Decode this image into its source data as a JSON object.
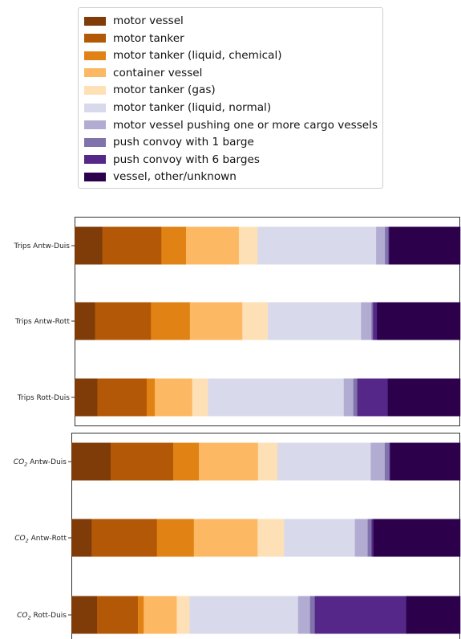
{
  "legend": {
    "placement": "top",
    "items": [
      {
        "label": "motor vessel",
        "color": "#7f3b08"
      },
      {
        "label": "motor tanker",
        "color": "#b35806"
      },
      {
        "label": "motor tanker (liquid, chemical)",
        "color": "#e08214"
      },
      {
        "label": "container vessel",
        "color": "#fdb863"
      },
      {
        "label": "motor tanker (gas)",
        "color": "#fee0b6"
      },
      {
        "label": "motor tanker (liquid, normal)",
        "color": "#d8daeb"
      },
      {
        "label": "motor vessel pushing one or more cargo vessels",
        "color": "#b2abd2"
      },
      {
        "label": "push convoy with 1 barge",
        "color": "#8073ac"
      },
      {
        "label": "push convoy with 6 barges",
        "color": "#542788"
      },
      {
        "label": "vessel, other/unknown",
        "color": "#2d004b"
      }
    ]
  },
  "chart_data": [
    {
      "type": "bar",
      "orientation": "horizontal",
      "stacked": true,
      "title": "",
      "xlabel": "",
      "ylabel": "",
      "xlim": [
        0,
        100
      ],
      "categories": [
        "Trips Antw-Duis",
        "Trips Antw-Rott",
        "Trips Rott-Duis"
      ],
      "series": [
        {
          "name": "motor vessel",
          "values": [
            7.2,
            5.3,
            5.9
          ]
        },
        {
          "name": "motor tanker",
          "values": [
            15.3,
            14.5,
            12.8
          ]
        },
        {
          "name": "motor tanker (liquid, chemical)",
          "values": [
            6.4,
            10.1,
            2.1
          ]
        },
        {
          "name": "container vessel",
          "values": [
            13.7,
            13.6,
            9.7
          ]
        },
        {
          "name": "motor tanker (gas)",
          "values": [
            4.9,
            6.6,
            4.1
          ]
        },
        {
          "name": "motor tanker (liquid, normal)",
          "values": [
            30.7,
            24.2,
            35.2
          ]
        },
        {
          "name": "motor vessel pushing one or more cargo vessels",
          "values": [
            2.3,
            2.7,
            2.5
          ]
        },
        {
          "name": "push convoy with 1 barge",
          "values": [
            0.9,
            0.4,
            1.0
          ]
        },
        {
          "name": "push convoy with 6 barges",
          "values": [
            0.2,
            1.0,
            7.9
          ]
        },
        {
          "name": "vessel, other/unknown",
          "values": [
            18.4,
            21.6,
            18.8
          ]
        }
      ]
    },
    {
      "type": "bar",
      "orientation": "horizontal",
      "stacked": true,
      "title": "",
      "xlabel": "",
      "ylabel": "",
      "xlim": [
        0,
        100
      ],
      "categories": [
        "CO2 Antw-Duis",
        "CO2 Antw-Rott",
        "CO2 Rott-Duis"
      ],
      "category_labels": [
        {
          "prefix": "CO",
          "sub": "2",
          "suffix": " Antw-Duis"
        },
        {
          "prefix": "CO",
          "sub": "2",
          "suffix": " Antw-Rott"
        },
        {
          "prefix": "CO",
          "sub": "2",
          "suffix": " Rott-Duis"
        }
      ],
      "series": [
        {
          "name": "motor vessel",
          "values": [
            10.1,
            5.2,
            6.6
          ]
        },
        {
          "name": "motor tanker",
          "values": [
            16.1,
            16.8,
            10.5
          ]
        },
        {
          "name": "motor tanker (liquid, chemical)",
          "values": [
            6.6,
            9.5,
            1.5
          ]
        },
        {
          "name": "container vessel",
          "values": [
            15.2,
            16.4,
            8.5
          ]
        },
        {
          "name": "motor tanker (gas)",
          "values": [
            5.0,
            6.8,
            3.3
          ]
        },
        {
          "name": "motor tanker (liquid, normal)",
          "values": [
            24.0,
            18.2,
            27.9
          ]
        },
        {
          "name": "motor vessel pushing one or more cargo vessels",
          "values": [
            3.6,
            3.3,
            3.1
          ]
        },
        {
          "name": "push convoy with 1 barge",
          "values": [
            1.2,
            1.0,
            1.2
          ]
        },
        {
          "name": "push convoy with 6 barges",
          "values": [
            0.2,
            0.5,
            23.5
          ]
        },
        {
          "name": "vessel, other/unknown",
          "values": [
            18.0,
            22.3,
            13.9
          ]
        }
      ]
    }
  ]
}
